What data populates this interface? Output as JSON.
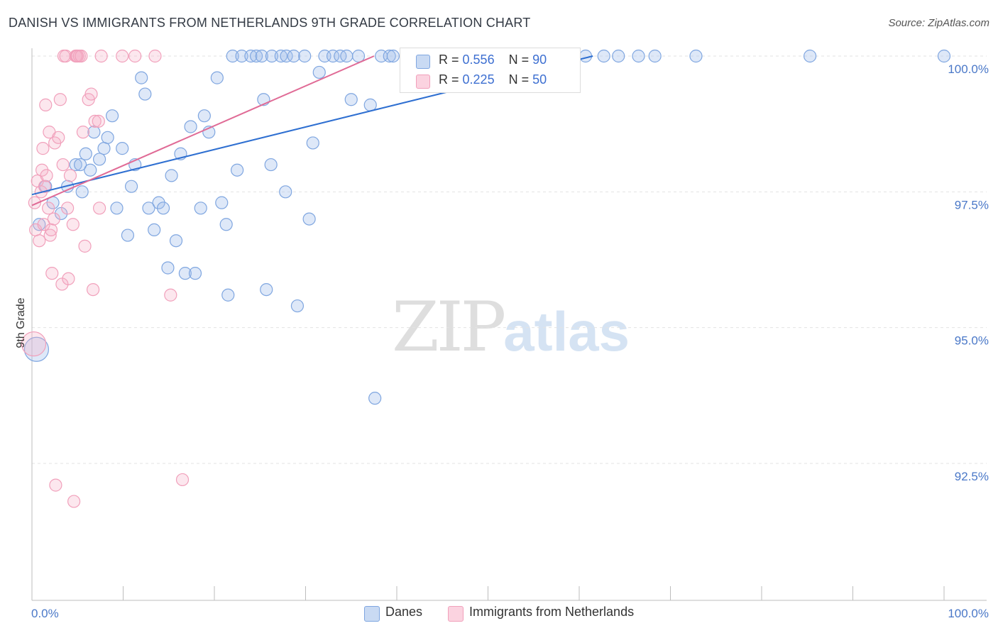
{
  "header": {
    "title": "DANISH VS IMMIGRANTS FROM NETHERLANDS 9TH GRADE CORRELATION CHART",
    "source": "Source: ZipAtlas.com"
  },
  "watermark": {
    "zip": "ZIP",
    "atlas": "atlas"
  },
  "legend_stats": [
    {
      "r_label": "R =",
      "r_value": "0.556",
      "n_label": "N =",
      "n_value": "90",
      "color": "#7fa6e0"
    },
    {
      "r_label": "R =",
      "r_value": "0.225",
      "n_label": "N =",
      "n_value": "50",
      "color": "#f1a0bb"
    }
  ],
  "legend": [
    {
      "label": "Danes",
      "color": "#7fa6e0"
    },
    {
      "label": "Immigrants from Netherlands",
      "color": "#f1a0bb"
    }
  ],
  "chart_data": {
    "type": "scatter",
    "title": "DANISH VS IMMIGRANTS FROM NETHERLANDS 9TH GRADE CORRELATION CHART",
    "xlabel": "",
    "ylabel": "9th Grade",
    "xlim": [
      0,
      100
    ],
    "ylim": [
      90.0,
      100.2
    ],
    "x_tick_labels": [
      "0.0%",
      "100.0%"
    ],
    "y_ticks": [
      {
        "value": 100.0,
        "label": "100.0%"
      },
      {
        "value": 97.5,
        "label": "97.5%"
      },
      {
        "value": 95.0,
        "label": "95.0%"
      },
      {
        "value": 92.5,
        "label": "92.5%"
      }
    ],
    "grid": true,
    "series": [
      {
        "name": "Danes",
        "color": "#7fa6e0",
        "line_color": "#2e6fd1",
        "trend": {
          "x0": 0,
          "y0": 97.45,
          "x1": 61.5,
          "y1": 100.0
        },
        "points": [
          {
            "x": 0.5,
            "y": 94.6,
            "big": true
          },
          {
            "x": 0.8,
            "y": 96.9
          },
          {
            "x": 1.5,
            "y": 97.6
          },
          {
            "x": 2.3,
            "y": 97.3
          },
          {
            "x": 3.2,
            "y": 97.1
          },
          {
            "x": 3.9,
            "y": 97.6
          },
          {
            "x": 4.8,
            "y": 98.0
          },
          {
            "x": 5.3,
            "y": 98.0
          },
          {
            "x": 5.5,
            "y": 97.5
          },
          {
            "x": 5.9,
            "y": 98.2
          },
          {
            "x": 6.4,
            "y": 97.9
          },
          {
            "x": 6.8,
            "y": 98.6
          },
          {
            "x": 7.4,
            "y": 98.1
          },
          {
            "x": 7.9,
            "y": 98.3
          },
          {
            "x": 8.3,
            "y": 98.5
          },
          {
            "x": 8.8,
            "y": 98.9
          },
          {
            "x": 9.3,
            "y": 97.2
          },
          {
            "x": 9.9,
            "y": 98.3
          },
          {
            "x": 10.5,
            "y": 96.7
          },
          {
            "x": 10.9,
            "y": 97.6
          },
          {
            "x": 11.3,
            "y": 98.0
          },
          {
            "x": 12.0,
            "y": 99.6
          },
          {
            "x": 12.4,
            "y": 99.3
          },
          {
            "x": 12.8,
            "y": 97.2
          },
          {
            "x": 13.4,
            "y": 96.8
          },
          {
            "x": 13.9,
            "y": 97.3
          },
          {
            "x": 14.4,
            "y": 97.2
          },
          {
            "x": 14.9,
            "y": 96.1
          },
          {
            "x": 15.3,
            "y": 97.8
          },
          {
            "x": 15.8,
            "y": 96.6
          },
          {
            "x": 16.3,
            "y": 98.2
          },
          {
            "x": 16.8,
            "y": 96.0
          },
          {
            "x": 17.4,
            "y": 98.7
          },
          {
            "x": 17.9,
            "y": 96.0
          },
          {
            "x": 18.5,
            "y": 97.2
          },
          {
            "x": 18.9,
            "y": 98.9
          },
          {
            "x": 19.4,
            "y": 98.6
          },
          {
            "x": 20.3,
            "y": 99.6
          },
          {
            "x": 20.8,
            "y": 97.3
          },
          {
            "x": 21.3,
            "y": 96.9
          },
          {
            "x": 21.5,
            "y": 95.6
          },
          {
            "x": 22.0,
            "y": 100.0
          },
          {
            "x": 22.5,
            "y": 97.9
          },
          {
            "x": 23.0,
            "y": 100.0
          },
          {
            "x": 24.0,
            "y": 100.0
          },
          {
            "x": 24.6,
            "y": 100.0
          },
          {
            "x": 25.2,
            "y": 100.0
          },
          {
            "x": 25.4,
            "y": 99.2
          },
          {
            "x": 25.7,
            "y": 95.7
          },
          {
            "x": 26.3,
            "y": 100.0
          },
          {
            "x": 26.2,
            "y": 98.0
          },
          {
            "x": 27.3,
            "y": 100.0
          },
          {
            "x": 27.9,
            "y": 100.0
          },
          {
            "x": 27.8,
            "y": 97.5
          },
          {
            "x": 28.7,
            "y": 100.0
          },
          {
            "x": 29.1,
            "y": 95.4
          },
          {
            "x": 29.9,
            "y": 100.0
          },
          {
            "x": 30.4,
            "y": 97.0
          },
          {
            "x": 30.8,
            "y": 98.4
          },
          {
            "x": 31.5,
            "y": 99.7
          },
          {
            "x": 32.1,
            "y": 100.0
          },
          {
            "x": 33.0,
            "y": 100.0
          },
          {
            "x": 33.8,
            "y": 100.0
          },
          {
            "x": 34.5,
            "y": 100.0
          },
          {
            "x": 35.0,
            "y": 99.2
          },
          {
            "x": 35.8,
            "y": 100.0
          },
          {
            "x": 37.1,
            "y": 99.1
          },
          {
            "x": 37.6,
            "y": 93.7
          },
          {
            "x": 38.3,
            "y": 100.0
          },
          {
            "x": 39.2,
            "y": 100.0
          },
          {
            "x": 39.6,
            "y": 100.0
          },
          {
            "x": 41.0,
            "y": 100.0
          },
          {
            "x": 42.2,
            "y": 100.0
          },
          {
            "x": 43.4,
            "y": 100.0
          },
          {
            "x": 44.5,
            "y": 100.0
          },
          {
            "x": 46.4,
            "y": 100.0
          },
          {
            "x": 47.6,
            "y": 100.0
          },
          {
            "x": 49.0,
            "y": 100.0
          },
          {
            "x": 51.0,
            "y": 100.0
          },
          {
            "x": 53.8,
            "y": 100.0
          },
          {
            "x": 55.0,
            "y": 100.0
          },
          {
            "x": 58.0,
            "y": 100.0
          },
          {
            "x": 60.7,
            "y": 100.0
          },
          {
            "x": 62.7,
            "y": 100.0
          },
          {
            "x": 64.3,
            "y": 100.0
          },
          {
            "x": 66.5,
            "y": 100.0
          },
          {
            "x": 68.3,
            "y": 100.0
          },
          {
            "x": 72.8,
            "y": 100.0
          },
          {
            "x": 85.3,
            "y": 100.0
          },
          {
            "x": 100.0,
            "y": 100.0
          }
        ]
      },
      {
        "name": "Immigrants from Netherlands",
        "color": "#f1a0bb",
        "line_color": "#e06b96",
        "trend": {
          "x0": 0,
          "y0": 97.25,
          "x1": 37.5,
          "y1": 100.0
        },
        "points": [
          {
            "x": 0.2,
            "y": 94.7,
            "big": true
          },
          {
            "x": 0.3,
            "y": 97.3
          },
          {
            "x": 0.4,
            "y": 96.8
          },
          {
            "x": 0.6,
            "y": 97.7
          },
          {
            "x": 0.8,
            "y": 96.6
          },
          {
            "x": 1.0,
            "y": 97.5
          },
          {
            "x": 1.1,
            "y": 97.9
          },
          {
            "x": 1.2,
            "y": 98.3
          },
          {
            "x": 1.3,
            "y": 96.9
          },
          {
            "x": 1.4,
            "y": 97.6
          },
          {
            "x": 1.5,
            "y": 99.1
          },
          {
            "x": 1.6,
            "y": 97.8
          },
          {
            "x": 1.8,
            "y": 97.2
          },
          {
            "x": 1.9,
            "y": 98.6
          },
          {
            "x": 2.0,
            "y": 96.7
          },
          {
            "x": 2.1,
            "y": 96.8
          },
          {
            "x": 2.2,
            "y": 96.0
          },
          {
            "x": 2.4,
            "y": 97.0
          },
          {
            "x": 2.5,
            "y": 98.4
          },
          {
            "x": 2.6,
            "y": 92.1
          },
          {
            "x": 2.9,
            "y": 98.5
          },
          {
            "x": 3.1,
            "y": 99.2
          },
          {
            "x": 3.3,
            "y": 95.8
          },
          {
            "x": 3.4,
            "y": 98.0
          },
          {
            "x": 3.5,
            "y": 100.0
          },
          {
            "x": 3.7,
            "y": 100.0
          },
          {
            "x": 3.9,
            "y": 97.2
          },
          {
            "x": 4.0,
            "y": 95.9
          },
          {
            "x": 4.2,
            "y": 97.8
          },
          {
            "x": 4.5,
            "y": 96.9
          },
          {
            "x": 4.6,
            "y": 91.8
          },
          {
            "x": 4.8,
            "y": 100.0
          },
          {
            "x": 4.9,
            "y": 100.0
          },
          {
            "x": 5.0,
            "y": 100.0
          },
          {
            "x": 5.2,
            "y": 100.0
          },
          {
            "x": 5.4,
            "y": 100.0
          },
          {
            "x": 5.6,
            "y": 98.6
          },
          {
            "x": 5.8,
            "y": 96.5
          },
          {
            "x": 6.2,
            "y": 99.2
          },
          {
            "x": 6.5,
            "y": 99.3
          },
          {
            "x": 6.7,
            "y": 95.7
          },
          {
            "x": 6.9,
            "y": 98.8
          },
          {
            "x": 7.3,
            "y": 98.8
          },
          {
            "x": 7.6,
            "y": 100.0
          },
          {
            "x": 7.4,
            "y": 97.2
          },
          {
            "x": 9.9,
            "y": 100.0
          },
          {
            "x": 11.3,
            "y": 100.0
          },
          {
            "x": 13.5,
            "y": 100.0
          },
          {
            "x": 15.2,
            "y": 95.6
          },
          {
            "x": 16.5,
            "y": 92.2
          }
        ]
      }
    ]
  }
}
